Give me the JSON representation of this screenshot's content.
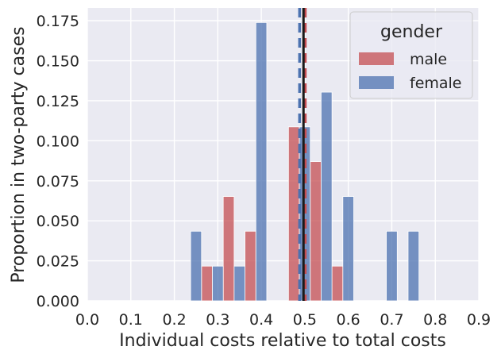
{
  "chart_data": {
    "type": "bar",
    "title": "",
    "xlabel": "Individual costs relative to total costs",
    "ylabel": "Proportion in two-party cases",
    "xlim": [
      0.0,
      0.9
    ],
    "ylim": [
      0.0,
      0.183
    ],
    "xticks": [
      "0.0",
      "0.1",
      "0.2",
      "0.3",
      "0.4",
      "0.5",
      "0.6",
      "0.7",
      "0.8",
      "0.9"
    ],
    "yticks": [
      "0.000",
      "0.025",
      "0.050",
      "0.075",
      "0.100",
      "0.125",
      "0.150",
      "0.175"
    ],
    "grid": true,
    "bin_width": 0.05,
    "legend": {
      "title": "gender",
      "placement": "top-right",
      "entries": [
        "male",
        "female"
      ]
    },
    "series": [
      {
        "name": "male",
        "color": "#c44e52",
        "bins": [
          {
            "x": 0.275,
            "value": 0.0217
          },
          {
            "x": 0.325,
            "value": 0.0652
          },
          {
            "x": 0.375,
            "value": 0.0435
          },
          {
            "x": 0.475,
            "value": 0.1087
          },
          {
            "x": 0.525,
            "value": 0.087
          },
          {
            "x": 0.575,
            "value": 0.0217
          }
        ],
        "mean": 0.501
      },
      {
        "name": "female",
        "color": "#4c72b0",
        "bins": [
          {
            "x": 0.25,
            "value": 0.0435
          },
          {
            "x": 0.3,
            "value": 0.0217
          },
          {
            "x": 0.35,
            "value": 0.0217
          },
          {
            "x": 0.4,
            "value": 0.1739
          },
          {
            "x": 0.5,
            "value": 0.1087
          },
          {
            "x": 0.55,
            "value": 0.1304
          },
          {
            "x": 0.6,
            "value": 0.0652
          },
          {
            "x": 0.7,
            "value": 0.0435
          },
          {
            "x": 0.75,
            "value": 0.0435
          }
        ],
        "mean": 0.488
      }
    ],
    "reference_lines": [
      {
        "x": 0.497,
        "color": "#1a1a1a",
        "style": "solid"
      }
    ]
  }
}
